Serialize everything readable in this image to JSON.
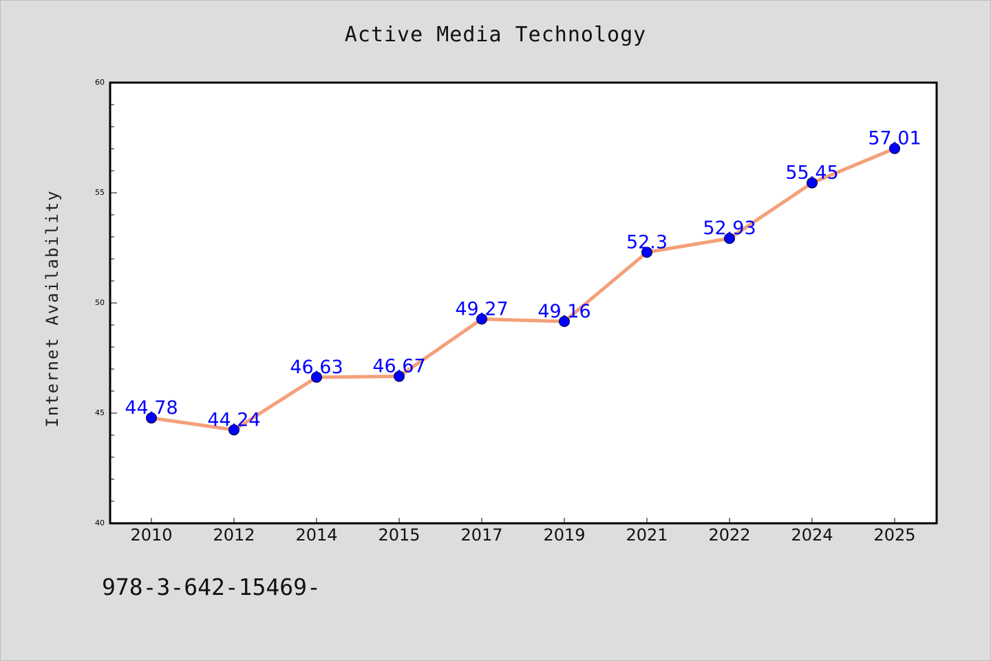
{
  "colors": {
    "background": "#dddddd",
    "plot_background": "#ffffff",
    "line": "#f4a07a",
    "marker": "#0000ff",
    "data_label": "#0000ff",
    "axis": "#000000"
  },
  "footer_text": "978-3-642-15469-",
  "chart_data": {
    "type": "line",
    "title": "Active Media Technology",
    "xlabel": "",
    "ylabel": "Internet Availability",
    "categories": [
      "2010",
      "2012",
      "2014",
      "2015",
      "2017",
      "2019",
      "2021",
      "2022",
      "2024",
      "2025"
    ],
    "series": [
      {
        "values": [
          44.78,
          44.24,
          46.63,
          46.67,
          49.27,
          49.16,
          52.3,
          52.93,
          55.45,
          57.01
        ],
        "labels": [
          "44.78",
          "44.24",
          "46.63",
          "46.67",
          "49.27",
          "49.16",
          "52.3",
          "52.93",
          "55.45",
          "57.01"
        ]
      }
    ],
    "ylim": [
      40,
      60
    ],
    "yticks": [
      40,
      45,
      50,
      55,
      60
    ],
    "yminor_step": 1,
    "grid": false,
    "legend": "none"
  }
}
